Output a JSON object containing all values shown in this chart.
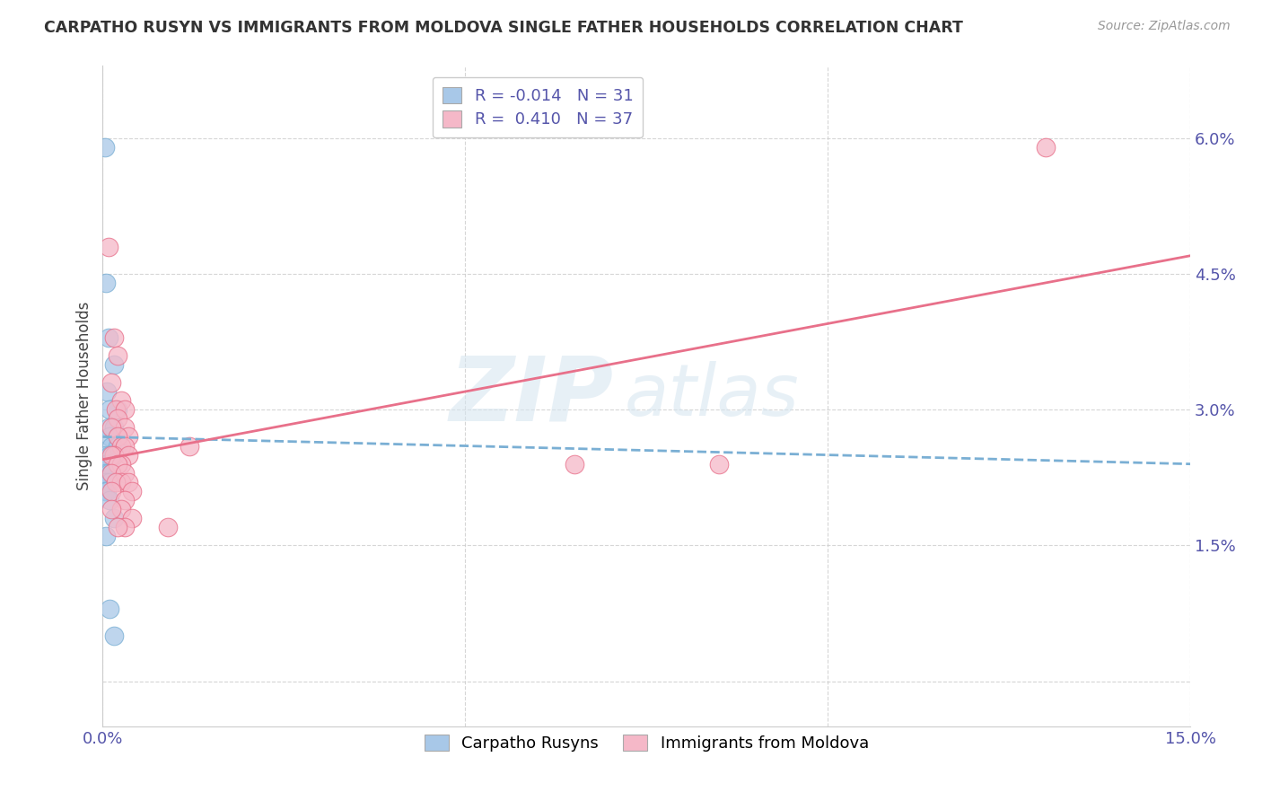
{
  "title": "CARPATHO RUSYN VS IMMIGRANTS FROM MOLDOVA SINGLE FATHER HOUSEHOLDS CORRELATION CHART",
  "source": "Source: ZipAtlas.com",
  "ylabel": "Single Father Households",
  "xlim": [
    0.0,
    0.15
  ],
  "ylim": [
    -0.005,
    0.068
  ],
  "xticks": [
    0.0,
    0.05,
    0.1,
    0.15
  ],
  "xticklabels": [
    "0.0%",
    "",
    "",
    "15.0%"
  ],
  "yticks": [
    0.0,
    0.015,
    0.03,
    0.045,
    0.06
  ],
  "yticklabels": [
    "",
    "1.5%",
    "3.0%",
    "4.5%",
    "6.0%"
  ],
  "legend_R1": "-0.014",
  "legend_N1": "31",
  "legend_R2": "0.410",
  "legend_N2": "37",
  "color_blue": "#a8c8e8",
  "color_pink": "#f5b8c8",
  "line_blue": "#7aafd4",
  "line_pink": "#e8708a",
  "blue_scatter": [
    [
      0.0003,
      0.059
    ],
    [
      0.0004,
      0.044
    ],
    [
      0.0008,
      0.038
    ],
    [
      0.0015,
      0.035
    ],
    [
      0.0006,
      0.032
    ],
    [
      0.002,
      0.03
    ],
    [
      0.001,
      0.03
    ],
    [
      0.0008,
      0.028
    ],
    [
      0.0015,
      0.028
    ],
    [
      0.001,
      0.027
    ],
    [
      0.002,
      0.027
    ],
    [
      0.0012,
      0.026
    ],
    [
      0.002,
      0.026
    ],
    [
      0.0005,
      0.025
    ],
    [
      0.001,
      0.025
    ],
    [
      0.0015,
      0.025
    ],
    [
      0.0003,
      0.024
    ],
    [
      0.0006,
      0.024
    ],
    [
      0.001,
      0.024
    ],
    [
      0.0004,
      0.023
    ],
    [
      0.0008,
      0.023
    ],
    [
      0.0012,
      0.023
    ],
    [
      0.0005,
      0.022
    ],
    [
      0.001,
      0.022
    ],
    [
      0.0003,
      0.021
    ],
    [
      0.0006,
      0.021
    ],
    [
      0.001,
      0.02
    ],
    [
      0.0015,
      0.018
    ],
    [
      0.0005,
      0.016
    ],
    [
      0.001,
      0.008
    ],
    [
      0.0015,
      0.005
    ]
  ],
  "pink_scatter": [
    [
      0.0008,
      0.048
    ],
    [
      0.0015,
      0.038
    ],
    [
      0.002,
      0.036
    ],
    [
      0.0012,
      0.033
    ],
    [
      0.0025,
      0.031
    ],
    [
      0.0018,
      0.03
    ],
    [
      0.003,
      0.03
    ],
    [
      0.002,
      0.029
    ],
    [
      0.003,
      0.028
    ],
    [
      0.0012,
      0.028
    ],
    [
      0.0035,
      0.027
    ],
    [
      0.002,
      0.027
    ],
    [
      0.0025,
      0.026
    ],
    [
      0.003,
      0.026
    ],
    [
      0.0015,
      0.025
    ],
    [
      0.0012,
      0.025
    ],
    [
      0.0035,
      0.025
    ],
    [
      0.0025,
      0.024
    ],
    [
      0.002,
      0.024
    ],
    [
      0.0012,
      0.023
    ],
    [
      0.003,
      0.023
    ],
    [
      0.0025,
      0.022
    ],
    [
      0.0018,
      0.022
    ],
    [
      0.0035,
      0.022
    ],
    [
      0.0012,
      0.021
    ],
    [
      0.004,
      0.021
    ],
    [
      0.003,
      0.02
    ],
    [
      0.0025,
      0.019
    ],
    [
      0.0012,
      0.019
    ],
    [
      0.004,
      0.018
    ],
    [
      0.003,
      0.017
    ],
    [
      0.002,
      0.017
    ],
    [
      0.009,
      0.017
    ],
    [
      0.012,
      0.026
    ],
    [
      0.13,
      0.059
    ],
    [
      0.085,
      0.024
    ],
    [
      0.065,
      0.024
    ]
  ],
  "blue_line": [
    [
      0.0,
      0.027
    ],
    [
      0.15,
      0.024
    ]
  ],
  "pink_line": [
    [
      0.0,
      0.0245
    ],
    [
      0.15,
      0.047
    ]
  ]
}
